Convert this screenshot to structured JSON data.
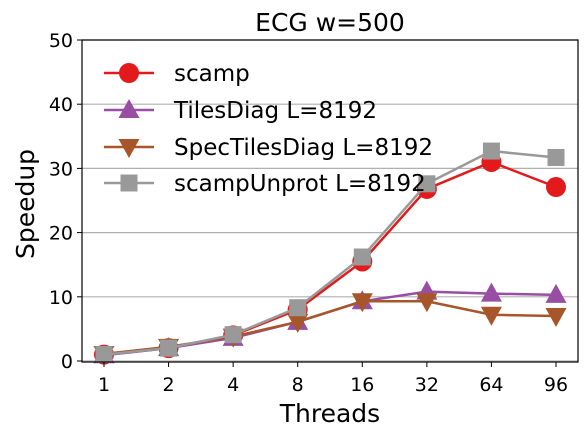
{
  "chart_data": {
    "type": "line",
    "title": "ECG w=500",
    "xlabel": "Threads",
    "ylabel": "Speedup",
    "categories": [
      "1",
      "2",
      "4",
      "8",
      "16",
      "32",
      "64",
      "96"
    ],
    "ylim": [
      0,
      50
    ],
    "yticks": [
      0,
      10,
      20,
      30,
      40,
      50
    ],
    "grid": "horizontal",
    "legend_position": "upper-left",
    "series": [
      {
        "name": "scamp",
        "color": "#e31a1c",
        "marker": "circle",
        "values": [
          1.0,
          2.0,
          4.0,
          8.0,
          15.5,
          26.8,
          31.0,
          27.1
        ]
      },
      {
        "name": "TilesDiag L=8192",
        "color": "#984ea3",
        "marker": "triangle-up",
        "values": [
          0.9,
          2.0,
          3.6,
          6.1,
          9.3,
          10.8,
          10.5,
          10.3
        ]
      },
      {
        "name": "SpecTilesDiag L=8192",
        "color": "#a65628",
        "marker": "triangle-down",
        "values": [
          1.1,
          2.2,
          3.8,
          6.1,
          9.3,
          9.3,
          7.2,
          7.0
        ]
      },
      {
        "name": "scampUnprot L=8192",
        "color": "#999999",
        "marker": "square",
        "values": [
          1.0,
          2.0,
          4.1,
          8.3,
          16.2,
          27.6,
          32.7,
          31.7
        ]
      }
    ]
  }
}
